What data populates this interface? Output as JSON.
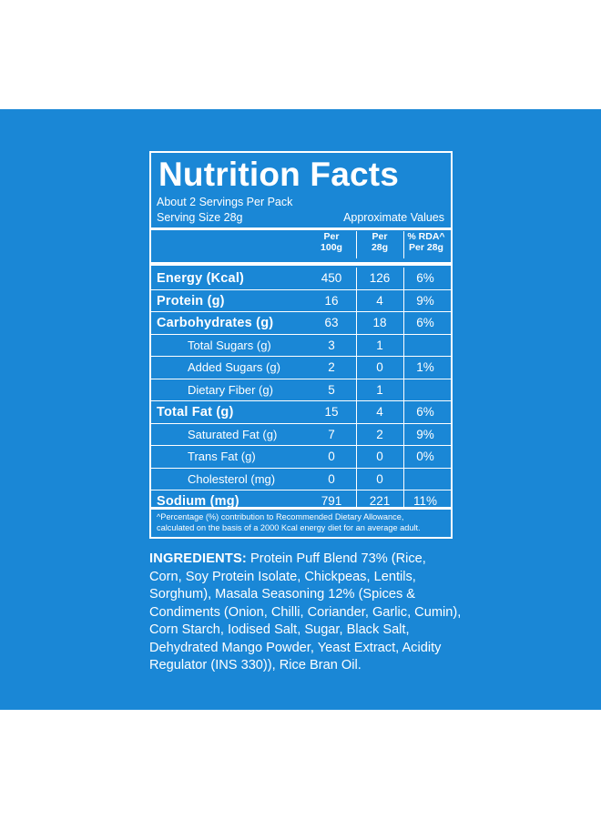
{
  "nutrition": {
    "title": "Nutrition Facts",
    "servings_per_pack": "About 2 Servings Per Pack",
    "serving_size": "Serving Size 28g",
    "approximate": "Approximate Values",
    "headers": {
      "per_100g_line1": "Per",
      "per_100g_line2": "100g",
      "per_28g_line1": "Per",
      "per_28g_line2": "28g",
      "rda_line1": "% RDA^",
      "rda_line2": "Per 28g"
    },
    "rows": [
      {
        "label": "Energy (Kcal)",
        "per100": "450",
        "per28": "126",
        "rda": "6%"
      },
      {
        "label": "Protein (g)",
        "per100": "16",
        "per28": "4",
        "rda": "9%"
      },
      {
        "label": "Carbohydrates (g)",
        "per100": "63",
        "per28": "18",
        "rda": "6%"
      },
      {
        "label": "Total Sugars (g)",
        "per100": "3",
        "per28": "1",
        "rda": ""
      },
      {
        "label": "Added Sugars (g)",
        "per100": "2",
        "per28": "0",
        "rda": "1%"
      },
      {
        "label": "Dietary Fiber (g)",
        "per100": "5",
        "per28": "1",
        "rda": ""
      },
      {
        "label": "Total Fat (g)",
        "per100": "15",
        "per28": "4",
        "rda": "6%"
      },
      {
        "label": "Saturated Fat (g)",
        "per100": "7",
        "per28": "2",
        "rda": "9%"
      },
      {
        "label": "Trans Fat (g)",
        "per100": "0",
        "per28": "0",
        "rda": "0%"
      },
      {
        "label": "Cholesterol (mg)",
        "per100": "0",
        "per28": "0",
        "rda": ""
      },
      {
        "label": "Sodium (mg)",
        "per100": "791",
        "per28": "221",
        "rda": "11%"
      }
    ],
    "footnote_line1": "^Percentage (%) contribution to Recommended Dietary Allowance,",
    "footnote_line2": "calculated on the basis of a 2000 Kcal energy diet for an average adult."
  },
  "ingredients": {
    "label": "INGREDIENTS:",
    "lines": [
      " Protein Puff Blend 73% (Rice,",
      "Corn, Soy Protein Isolate, Chickpeas, Lentils,",
      "Sorghum), Masala Seasoning 12% (Spices &",
      "Condiments (Onion, Chilli, Coriander, Garlic, Cumin),",
      "Corn Starch, Iodised Salt, Sugar, Black Salt,",
      "Dehydrated Mango Powder, Yeast Extract, Acidity",
      "Regulator (INS 330)), Rice Bran Oil."
    ]
  },
  "colors": {
    "background_blue": "#1a87d6",
    "text": "#ffffff"
  }
}
